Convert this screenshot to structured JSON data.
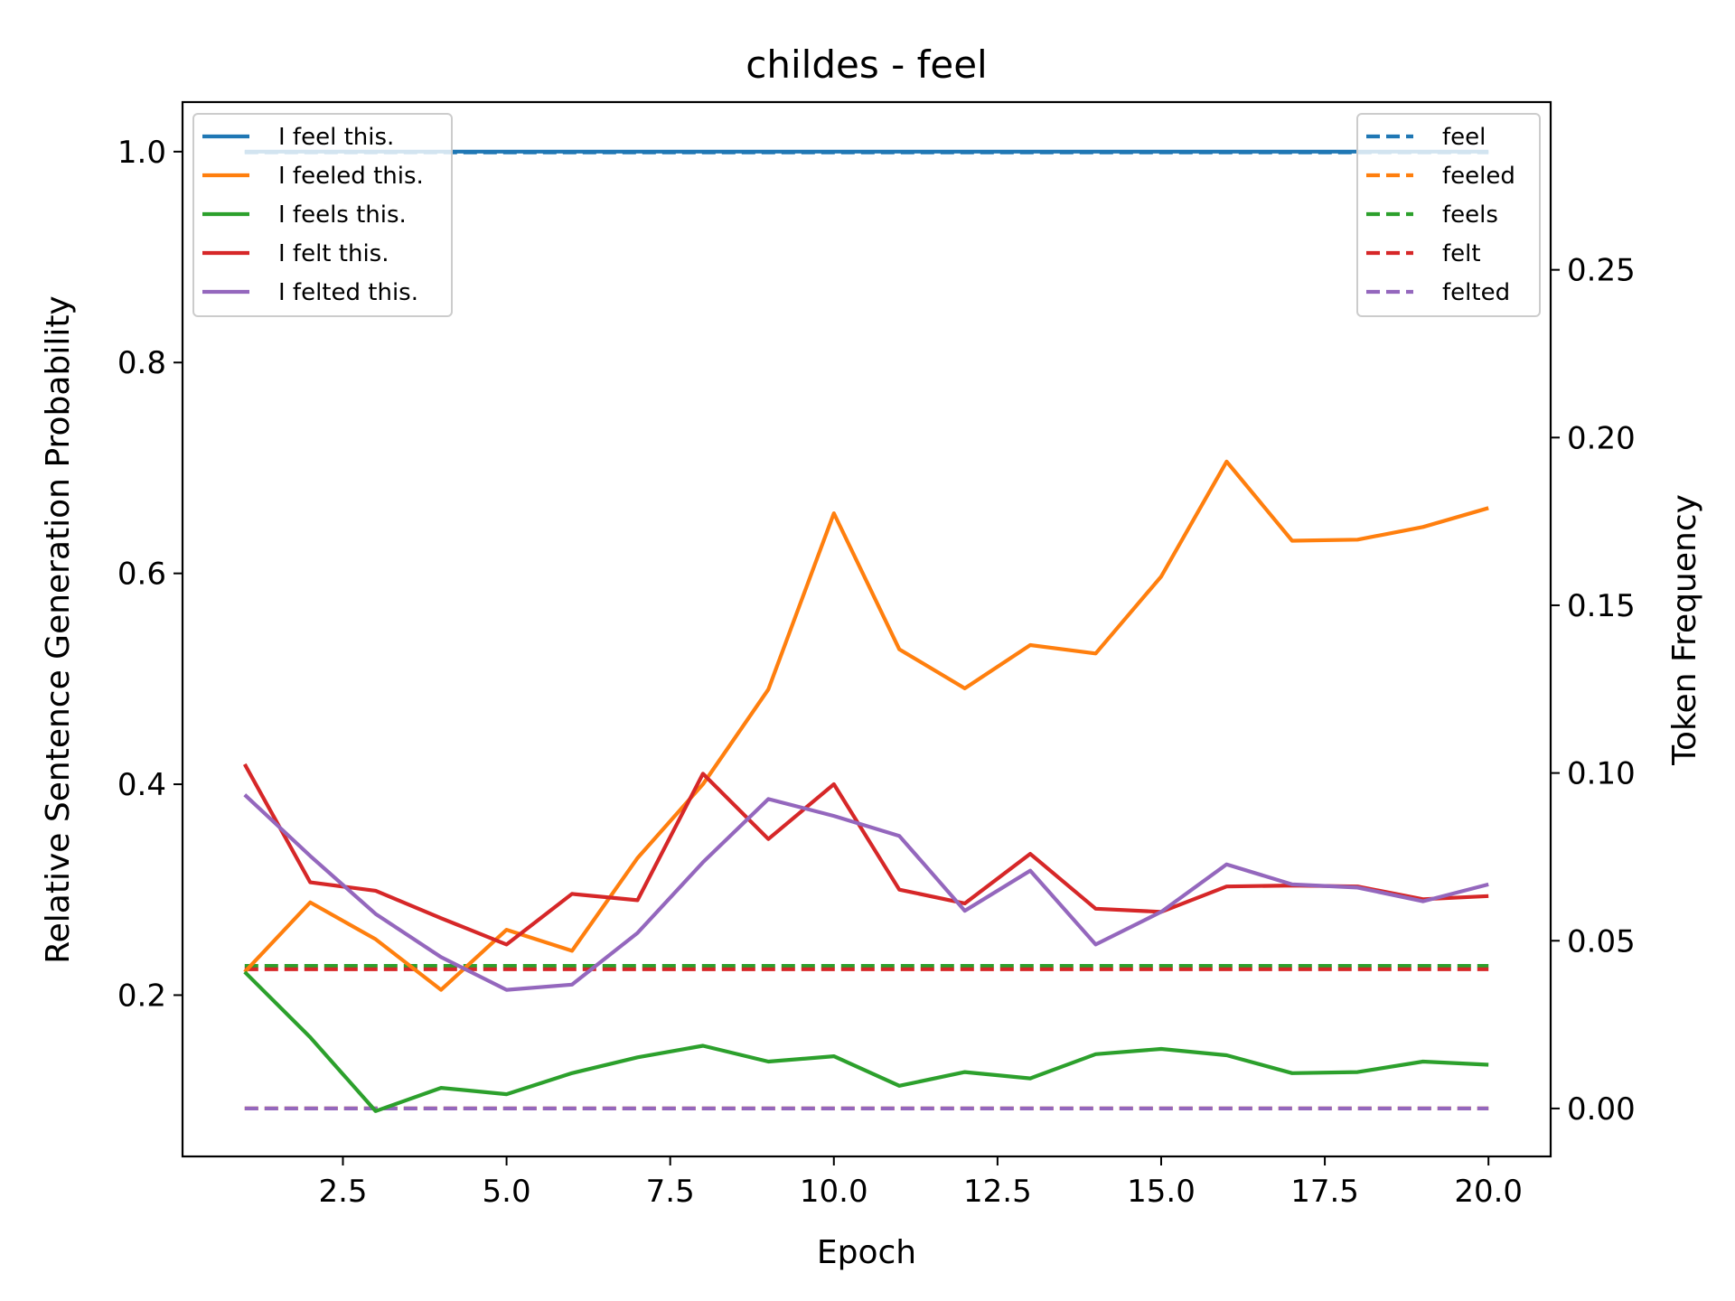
{
  "chart_data": {
    "type": "line",
    "title": "childes - feel",
    "xlabel": "Epoch",
    "ylabel": "Relative Sentence Generation Probability",
    "y2label": "Token Frequency",
    "xlim": [
      0.05,
      20.95
    ],
    "ylim": [
      0.047,
      1.047
    ],
    "y2lim": [
      -0.0143,
      0.3
    ],
    "xticks": [
      "2.5",
      "5.0",
      "7.5",
      "10.0",
      "12.5",
      "15.0",
      "17.5",
      "20.0"
    ],
    "yticks": [
      "0.2",
      "0.4",
      "0.6",
      "0.8",
      "1.0"
    ],
    "y2ticks": [
      "0.00",
      "0.05",
      "0.10",
      "0.15",
      "0.20",
      "0.25"
    ],
    "x": [
      1,
      2,
      3,
      4,
      5,
      6,
      7,
      8,
      9,
      10,
      11,
      12,
      13,
      14,
      15,
      16,
      17,
      18,
      19,
      20
    ],
    "series": [
      {
        "name": "I feel this.",
        "color": "#1f77b4",
        "axis": "left",
        "style": "solid",
        "values": [
          1.0,
          1.0,
          1.0,
          1.0,
          1.0,
          1.0,
          1.0,
          1.0,
          1.0,
          1.0,
          1.0,
          1.0,
          1.0,
          1.0,
          1.0,
          1.0,
          1.0,
          1.0,
          1.0,
          1.0
        ]
      },
      {
        "name": "I feeled this.",
        "color": "#ff7f0e",
        "axis": "left",
        "style": "solid",
        "values": [
          0.222,
          0.288,
          0.253,
          0.205,
          0.262,
          0.242,
          0.33,
          0.4,
          0.49,
          0.657,
          0.528,
          0.491,
          0.532,
          0.524,
          0.597,
          0.706,
          0.631,
          0.632,
          0.644,
          0.662
        ]
      },
      {
        "name": "I feels this.",
        "color": "#2ca02c",
        "axis": "left",
        "style": "solid",
        "values": [
          0.222,
          0.16,
          0.09,
          0.112,
          0.106,
          0.126,
          0.141,
          0.152,
          0.137,
          0.142,
          0.114,
          0.127,
          0.121,
          0.144,
          0.149,
          0.143,
          0.126,
          0.127,
          0.137,
          0.134
        ]
      },
      {
        "name": "I felt this.",
        "color": "#d62728",
        "axis": "left",
        "style": "solid",
        "values": [
          0.419,
          0.307,
          0.299,
          0.273,
          0.248,
          0.296,
          0.29,
          0.41,
          0.348,
          0.4,
          0.3,
          0.287,
          0.334,
          0.282,
          0.279,
          0.303,
          0.304,
          0.303,
          0.291,
          0.294
        ]
      },
      {
        "name": "I felted this.",
        "color": "#9467bd",
        "axis": "left",
        "style": "solid",
        "values": [
          0.39,
          0.332,
          0.277,
          0.236,
          0.205,
          0.21,
          0.259,
          0.326,
          0.386,
          0.37,
          0.351,
          0.28,
          0.318,
          0.248,
          0.279,
          0.324,
          0.305,
          0.302,
          0.289,
          0.305
        ]
      },
      {
        "name": "feel",
        "color": "#1f77b4",
        "axis": "right",
        "style": "dashed",
        "values": [
          0.285,
          0.285,
          0.285,
          0.285,
          0.285,
          0.285,
          0.285,
          0.285,
          0.285,
          0.285,
          0.285,
          0.285,
          0.285,
          0.285,
          0.285,
          0.285,
          0.285,
          0.285,
          0.285,
          0.285
        ]
      },
      {
        "name": "feeled",
        "color": "#ff7f0e",
        "axis": "right",
        "style": "dashed",
        "values": [
          0.0,
          0.0,
          0.0,
          0.0,
          0.0,
          0.0,
          0.0,
          0.0,
          0.0,
          0.0,
          0.0,
          0.0,
          0.0,
          0.0,
          0.0,
          0.0,
          0.0,
          0.0,
          0.0,
          0.0
        ]
      },
      {
        "name": "feels",
        "color": "#2ca02c",
        "axis": "right",
        "style": "dashed",
        "values": [
          0.0425,
          0.0425,
          0.0425,
          0.0425,
          0.0425,
          0.0425,
          0.0425,
          0.0425,
          0.0425,
          0.0425,
          0.0425,
          0.0425,
          0.0425,
          0.0425,
          0.0425,
          0.0425,
          0.0425,
          0.0425,
          0.0425,
          0.0425
        ]
      },
      {
        "name": "felt",
        "color": "#d62728",
        "axis": "right",
        "style": "dashed",
        "values": [
          0.0415,
          0.0415,
          0.0415,
          0.0415,
          0.0415,
          0.0415,
          0.0415,
          0.0415,
          0.0415,
          0.0415,
          0.0415,
          0.0415,
          0.0415,
          0.0415,
          0.0415,
          0.0415,
          0.0415,
          0.0415,
          0.0415,
          0.0415
        ]
      },
      {
        "name": "felted",
        "color": "#9467bd",
        "axis": "right",
        "style": "dashed",
        "values": [
          0.0,
          0.0,
          0.0,
          0.0,
          0.0,
          0.0,
          0.0,
          0.0,
          0.0,
          0.0,
          0.0,
          0.0,
          0.0,
          0.0,
          0.0,
          0.0,
          0.0,
          0.0,
          0.0,
          0.0
        ]
      }
    ],
    "legend_left": [
      "I feel this.",
      "I feeled this.",
      "I feels this.",
      "I felt this.",
      "I felted this."
    ],
    "legend_right": [
      "feel",
      "feeled",
      "feels",
      "felt",
      "felted"
    ],
    "legend_left_placement": "upper left",
    "legend_right_placement": "upper right",
    "grid": false
  }
}
